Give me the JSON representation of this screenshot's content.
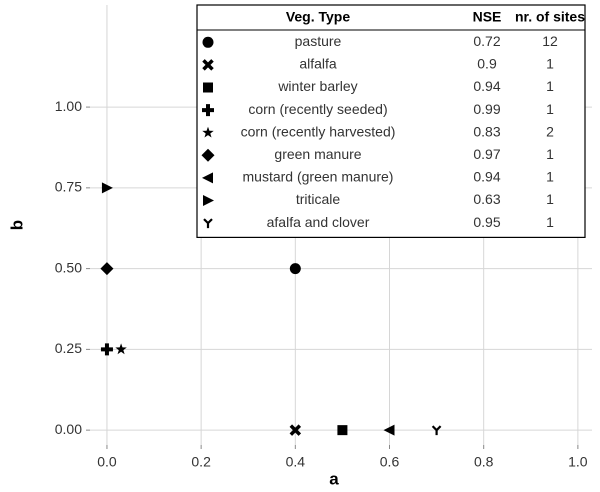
{
  "chart_data": {
    "type": "scatter",
    "x_label": "a",
    "y_label": "b",
    "xlim": [
      -0.036,
      1.03
    ],
    "ylim": [
      -0.046,
      1.316
    ],
    "xticks": [
      {
        "value": 0,
        "label": "0.0"
      },
      0.2,
      0.4,
      0.6,
      0.8,
      {
        "value": 1,
        "label": "1.0"
      }
    ],
    "yticks": [
      {
        "value": 0,
        "label": "0.00"
      },
      {
        "value": 0.25,
        "label": "0.25"
      },
      {
        "value": 0.5,
        "label": "0.50"
      },
      {
        "value": 0.75,
        "label": "0.75"
      },
      {
        "value": 1,
        "label": "1.00"
      }
    ],
    "grid": true,
    "color": "#000000",
    "legend_position": "upper right",
    "legend_headers": [
      "Veg. Type",
      "NSE",
      "nr. of sites"
    ],
    "series": [
      {
        "name": "pasture",
        "marker": "circle",
        "x": [
          0.4
        ],
        "values": [
          0.5
        ],
        "nse": 0.72,
        "sites": 12
      },
      {
        "name": "alfalfa",
        "marker": "x",
        "x": [
          0.4
        ],
        "values": [
          0
        ],
        "nse": 0.9,
        "sites": 1
      },
      {
        "name": "winter barley",
        "marker": "square",
        "x": [
          0.5
        ],
        "values": [
          0
        ],
        "nse": 0.94,
        "sites": 1
      },
      {
        "name": "corn (recently seeded)",
        "marker": "plus",
        "x": [
          0
        ],
        "values": [
          0.25
        ],
        "nse": 0.99,
        "sites": 1
      },
      {
        "name": "corn (recently harvested)",
        "marker": "star",
        "x": [
          0.03
        ],
        "values": [
          0.25
        ],
        "nse": 0.83,
        "sites": 2
      },
      {
        "name": "green manure",
        "marker": "diamond",
        "x": [
          0
        ],
        "values": [
          0.5
        ],
        "nse": 0.97,
        "sites": 1
      },
      {
        "name": "mustard (green manure)",
        "marker": "triangle-left",
        "x": [
          0.6
        ],
        "values": [
          0
        ],
        "nse": 0.94,
        "sites": 1
      },
      {
        "name": "triticale",
        "marker": "triangle-right",
        "x": [
          0
        ],
        "values": [
          0.75
        ],
        "nse": 0.63,
        "sites": 1
      },
      {
        "name": "afalfa and clover",
        "marker": "tri-down",
        "x": [
          0.7
        ],
        "values": [
          0
        ],
        "nse": 0.95,
        "sites": 1
      }
    ]
  }
}
